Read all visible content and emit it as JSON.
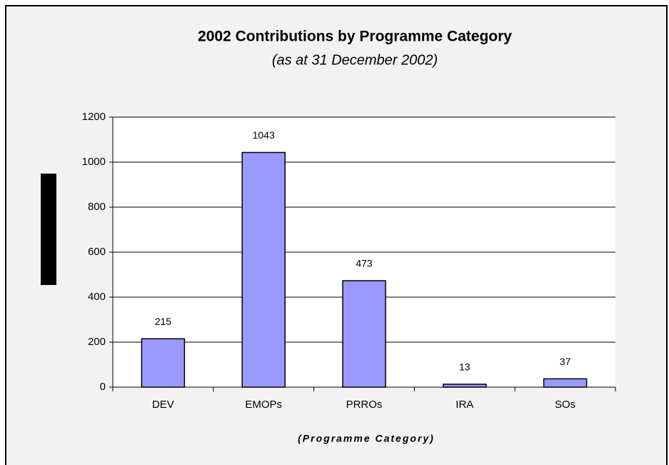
{
  "chart_data": {
    "type": "bar",
    "title": "2002 Contributions by Programme Category",
    "subtitle": "(as at 31 December 2002)",
    "x_label": "(Programme Category)",
    "categories": [
      "DEV",
      "EMOPs",
      "PRROs",
      "IRA",
      "SOs"
    ],
    "values": [
      215,
      1043,
      473,
      13,
      37
    ],
    "color": "#9999ff",
    "ylim": [
      0,
      1200
    ],
    "yticks": [
      0,
      200,
      400,
      600,
      800,
      1000,
      1200
    ],
    "grid": true
  }
}
